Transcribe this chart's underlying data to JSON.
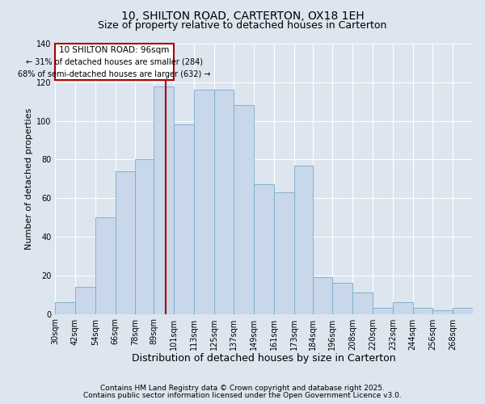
{
  "title": "10, SHILTON ROAD, CARTERTON, OX18 1EH",
  "subtitle": "Size of property relative to detached houses in Carterton",
  "xlabel": "Distribution of detached houses by size in Carterton",
  "ylabel": "Number of detached properties",
  "property_label": "10 SHILTON ROAD: 96sqm",
  "annotation_line1": "← 31% of detached houses are smaller (284)",
  "annotation_line2": "68% of semi-detached houses are larger (632) →",
  "footnote1": "Contains HM Land Registry data © Crown copyright and database right 2025.",
  "footnote2": "Contains public sector information licensed under the Open Government Licence v3.0.",
  "bin_edges": [
    30,
    42,
    54,
    66,
    78,
    89,
    101,
    113,
    125,
    137,
    149,
    161,
    173,
    184,
    196,
    208,
    220,
    232,
    244,
    256,
    268,
    280
  ],
  "counts": [
    6,
    14,
    50,
    74,
    80,
    118,
    98,
    116,
    116,
    108,
    67,
    63,
    77,
    19,
    16,
    11,
    3,
    6,
    3,
    2,
    3
  ],
  "bar_facecolor": "#c8d8ea",
  "bar_edgecolor": "#7aaac8",
  "vline_color": "#aa0000",
  "vline_x": 96,
  "annotation_box_edgecolor": "#aa0000",
  "annotation_box_facecolor": "#ffffff",
  "ylim": [
    0,
    140
  ],
  "yticks": [
    0,
    20,
    40,
    60,
    80,
    100,
    120,
    140
  ],
  "fig_facecolor": "#dde5ef",
  "axes_facecolor": "#dde5ef",
  "grid_color": "#ffffff",
  "title_fontsize": 10,
  "subtitle_fontsize": 9,
  "xlabel_fontsize": 9,
  "ylabel_fontsize": 8,
  "tick_fontsize": 7,
  "annot_fontsize": 7.5,
  "footnote_fontsize": 6.5,
  "tick_labels": [
    "30sqm",
    "42sqm",
    "54sqm",
    "66sqm",
    "78sqm",
    "89sqm",
    "101sqm",
    "113sqm",
    "125sqm",
    "137sqm",
    "149sqm",
    "161sqm",
    "173sqm",
    "184sqm",
    "196sqm",
    "208sqm",
    "220sqm",
    "232sqm",
    "244sqm",
    "256sqm",
    "268sqm"
  ]
}
